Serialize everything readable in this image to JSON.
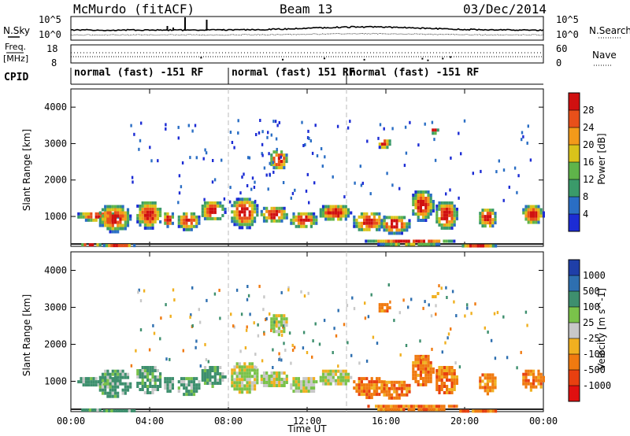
{
  "header": {
    "station": "McMurdo (fitACF)",
    "beam": "Beam 13",
    "date": "03/Dec/2014"
  },
  "left_labels": {
    "nsky": "N.Sky",
    "freq": "Freq.",
    "freq_unit": "[MHz]",
    "cpid": "CPID"
  },
  "right_labels": {
    "nsearch": "N.Search",
    "nave": "Nave"
  },
  "top_panel": {
    "noise_left_ticks": [
      "10^5",
      "10^0"
    ],
    "noise_right_ticks": [
      "10^5",
      "10^0"
    ],
    "freq_left_ticks": [
      "18",
      "8"
    ],
    "freq_right_ticks": [
      "60",
      "0"
    ]
  },
  "cpid_segments": [
    {
      "label": "normal (fast) -151 RF",
      "start_hour": 0
    },
    {
      "label": "normal (fast) 151 RF",
      "start_hour": 8
    },
    {
      "label": "normal (fast) -151 RF",
      "start_hour": 14
    }
  ],
  "chart_data": [
    {
      "type": "heatmap",
      "name": "power",
      "ylabel": "Slant Range [km]",
      "ylim": [
        180,
        4500
      ],
      "yticks": [
        "1000",
        "2000",
        "3000",
        "4000"
      ],
      "colorbar_label": "Power [dB]",
      "colorbar_ticks": [
        "4",
        "8",
        "12",
        "16",
        "20",
        "24",
        "28"
      ],
      "colors": [
        "#1c2cd4",
        "#2a6ec4",
        "#3a9a6a",
        "#5fb44a",
        "#d9c31a",
        "#f39a1a",
        "#e8501a",
        "#d01010"
      ]
    },
    {
      "type": "heatmap",
      "name": "velocity",
      "ylabel": "Slant Range [km]",
      "ylim": [
        180,
        4500
      ],
      "yticks": [
        "1000",
        "2000",
        "3000",
        "4000"
      ],
      "xlabel": "Time UT",
      "xticks": [
        "00:00",
        "04:00",
        "08:00",
        "12:00",
        "16:00",
        "20:00",
        "00:00"
      ],
      "xlim": [
        0,
        24
      ],
      "colorbar_label": "Velocity [m s^-1]",
      "colorbar_ticks": [
        "1000",
        "500",
        "100",
        "25",
        "-25",
        "-100",
        "-500",
        "-1000"
      ],
      "colors": [
        "#1f3fa8",
        "#2e6fb0",
        "#3e8f6e",
        "#7ac24a",
        "#c8c8c8",
        "#f0b020",
        "#f07a10",
        "#e84010",
        "#e01010"
      ]
    }
  ]
}
